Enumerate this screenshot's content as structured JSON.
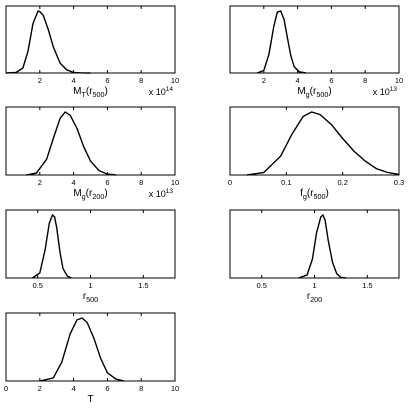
{
  "chart_data": [
    {
      "type": "line",
      "title": "",
      "xlabel": "M_T(r_500)",
      "exponent_label": {
        "base": "x 10",
        "power": "14"
      },
      "xlim": [
        0,
        10
      ],
      "xticks": [
        2,
        4,
        6,
        8,
        10
      ],
      "xtick_labels": [
        "2",
        "4",
        "6",
        "8",
        "10"
      ],
      "ylabel": "",
      "x": [
        0,
        0.6,
        1.0,
        1.3,
        1.6,
        1.9,
        2.0,
        2.2,
        2.5,
        2.8,
        3.2,
        3.6,
        4.0,
        4.5,
        5.0
      ],
      "y": [
        0,
        0.01,
        0.08,
        0.35,
        0.8,
        1.0,
        0.99,
        0.93,
        0.7,
        0.42,
        0.16,
        0.05,
        0.01,
        0.002,
        0
      ]
    },
    {
      "type": "line",
      "title": "",
      "xlabel": "M_g(r_500)",
      "exponent_label": {
        "base": "x 10",
        "power": "13"
      },
      "xlim": [
        0,
        10
      ],
      "xticks": [
        2,
        4,
        6,
        8,
        10
      ],
      "xtick_labels": [
        "2",
        "4",
        "6",
        "8",
        "10"
      ],
      "ylabel": "",
      "x": [
        1.6,
        2.0,
        2.3,
        2.6,
        2.8,
        3.0,
        3.2,
        3.4,
        3.6,
        3.8,
        4.1,
        4.5
      ],
      "y": [
        0,
        0.04,
        0.3,
        0.76,
        0.98,
        1.0,
        0.86,
        0.56,
        0.28,
        0.1,
        0.02,
        0
      ]
    },
    {
      "type": "line",
      "title": "",
      "xlabel": "M_g(r_200)",
      "exponent_label": {
        "base": "x 10",
        "power": "13"
      },
      "xlim": [
        0,
        10
      ],
      "xticks": [
        2,
        4,
        6,
        8,
        10
      ],
      "xtick_labels": [
        "2",
        "4",
        "6",
        "8",
        "10"
      ],
      "ylabel": "",
      "x": [
        1.2,
        1.8,
        2.4,
        2.8,
        3.2,
        3.5,
        3.8,
        4.2,
        4.6,
        5.0,
        5.5,
        6.0,
        6.5
      ],
      "y": [
        0,
        0.03,
        0.25,
        0.58,
        0.9,
        1.0,
        0.95,
        0.74,
        0.45,
        0.22,
        0.07,
        0.015,
        0
      ]
    },
    {
      "type": "line",
      "title": "",
      "xlabel": "f_g(r_500)",
      "xlim": [
        0,
        0.3
      ],
      "xticks": [
        0,
        0.1,
        0.2,
        0.3
      ],
      "xtick_labels": [
        "0",
        "0.1",
        "0.2",
        "0.3"
      ],
      "ylabel": "",
      "x": [
        0.03,
        0.06,
        0.09,
        0.11,
        0.13,
        0.145,
        0.16,
        0.18,
        0.2,
        0.22,
        0.24,
        0.26,
        0.28,
        0.3
      ],
      "y": [
        0,
        0.04,
        0.3,
        0.65,
        0.93,
        1.0,
        0.96,
        0.8,
        0.58,
        0.38,
        0.22,
        0.1,
        0.04,
        0.01
      ]
    },
    {
      "type": "line",
      "title": "",
      "xlabel": "r_500",
      "xlim": [
        0.2,
        1.8
      ],
      "xticks": [
        0.5,
        1,
        1.5
      ],
      "xtick_labels": [
        "0.5",
        "1",
        "1.5"
      ],
      "ylabel": "",
      "x": [
        0.45,
        0.52,
        0.57,
        0.61,
        0.64,
        0.66,
        0.68,
        0.71,
        0.74,
        0.78,
        0.82
      ],
      "y": [
        0,
        0.08,
        0.45,
        0.87,
        1.0,
        0.97,
        0.8,
        0.42,
        0.15,
        0.03,
        0
      ]
    },
    {
      "type": "line",
      "title": "",
      "xlabel": "r_200",
      "xlim": [
        0.2,
        1.8
      ],
      "xticks": [
        0.5,
        1,
        1.5
      ],
      "xtick_labels": [
        "0.5",
        "1",
        "1.5"
      ],
      "ylabel": "",
      "x": [
        0.85,
        0.93,
        0.98,
        1.02,
        1.06,
        1.08,
        1.1,
        1.13,
        1.17,
        1.21,
        1.25,
        1.3
      ],
      "y": [
        0,
        0.05,
        0.3,
        0.72,
        0.97,
        1.0,
        0.92,
        0.6,
        0.25,
        0.07,
        0.01,
        0
      ]
    },
    {
      "type": "line",
      "title": "",
      "xlabel": "T",
      "xlim": [
        0,
        10
      ],
      "xticks": [
        0,
        2,
        4,
        6,
        8,
        10
      ],
      "xtick_labels": [
        "0",
        "2",
        "4",
        "6",
        "8",
        "10"
      ],
      "ylabel": "",
      "x": [
        2.0,
        2.8,
        3.3,
        3.8,
        4.2,
        4.5,
        4.8,
        5.2,
        5.6,
        6.0,
        6.5,
        7.0
      ],
      "y": [
        0,
        0.05,
        0.3,
        0.75,
        0.97,
        1.0,
        0.93,
        0.68,
        0.36,
        0.13,
        0.03,
        0
      ]
    }
  ]
}
